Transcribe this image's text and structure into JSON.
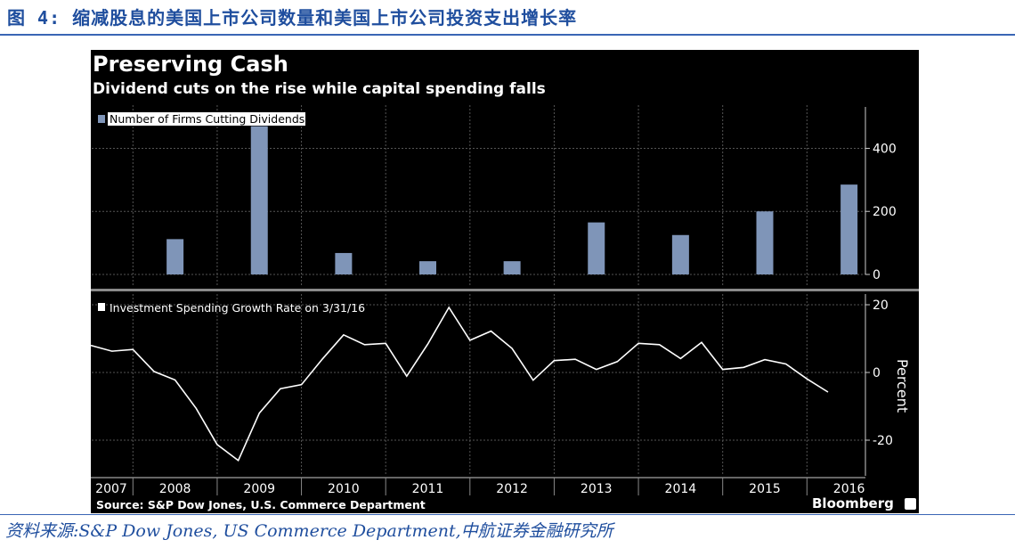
{
  "figure_title": "图 4: 缩减股息的美国上市公司数量和美国上市公司投资支出增长率",
  "panel_title": "Preserving Cash",
  "panel_subtitle": "Dividend cuts on the rise while capital spending falls",
  "source": "Source: S&P Dow Jones, U.S. Commerce Department",
  "brand": "Bloomberg",
  "note": "资料来源:S&P Dow Jones, US Commerce Department,中航证券金融研究所",
  "colors": {
    "bar": "#7f95b8",
    "line": "#ffffff",
    "panel_bg": "#000000",
    "heading": "#1f4e9e"
  },
  "chart_data": [
    {
      "type": "bar",
      "legend": "Number of Firms Cutting Dividends",
      "legend_position": "top-left",
      "categories": [
        "2008",
        "2009",
        "2010",
        "2011",
        "2012",
        "2013",
        "2014",
        "2015",
        "2016"
      ],
      "values": [
        112,
        470,
        68,
        42,
        42,
        165,
        125,
        200,
        285
      ],
      "yticks": [
        0,
        200,
        400
      ],
      "ylim": [
        0,
        520
      ],
      "grid": true
    },
    {
      "type": "line",
      "legend": "Investment Spending Growth Rate on 3/31/16",
      "legend_position": "top-left",
      "ylabel": "Percent",
      "yticks": [
        -20,
        0,
        20
      ],
      "ylim": [
        -30,
        22
      ],
      "x": [
        2007.5,
        2007.75,
        2008.0,
        2008.25,
        2008.5,
        2008.75,
        2009.0,
        2009.25,
        2009.5,
        2009.75,
        2010.0,
        2010.25,
        2010.5,
        2010.75,
        2011.0,
        2011.25,
        2011.5,
        2011.75,
        2012.0,
        2012.25,
        2012.5,
        2012.75,
        2013.0,
        2013.25,
        2013.5,
        2013.75,
        2014.0,
        2014.25,
        2014.5,
        2014.75,
        2015.0,
        2015.25,
        2015.5,
        2015.75,
        2016.0
      ],
      "values": [
        8,
        6.3,
        6.8,
        0.3,
        -2.2,
        -10.6,
        -21.3,
        -26,
        -12,
        -4.8,
        -3.6,
        4,
        11.1,
        8.2,
        8.6,
        -1.1,
        8.4,
        19.2,
        9.5,
        12.2,
        7.1,
        -2.3,
        3.5,
        3.9,
        0.9,
        3.2,
        8.6,
        8.2,
        4.1,
        8.9,
        0.9,
        1.5,
        3.8,
        2.5,
        -1.9
      ],
      "extra_point": {
        "x": 2016.25,
        "y": -5.8
      },
      "xticks": [
        "2007",
        "2008",
        "2009",
        "2010",
        "2011",
        "2012",
        "2013",
        "2014",
        "2015",
        "2016"
      ],
      "grid": true
    }
  ]
}
